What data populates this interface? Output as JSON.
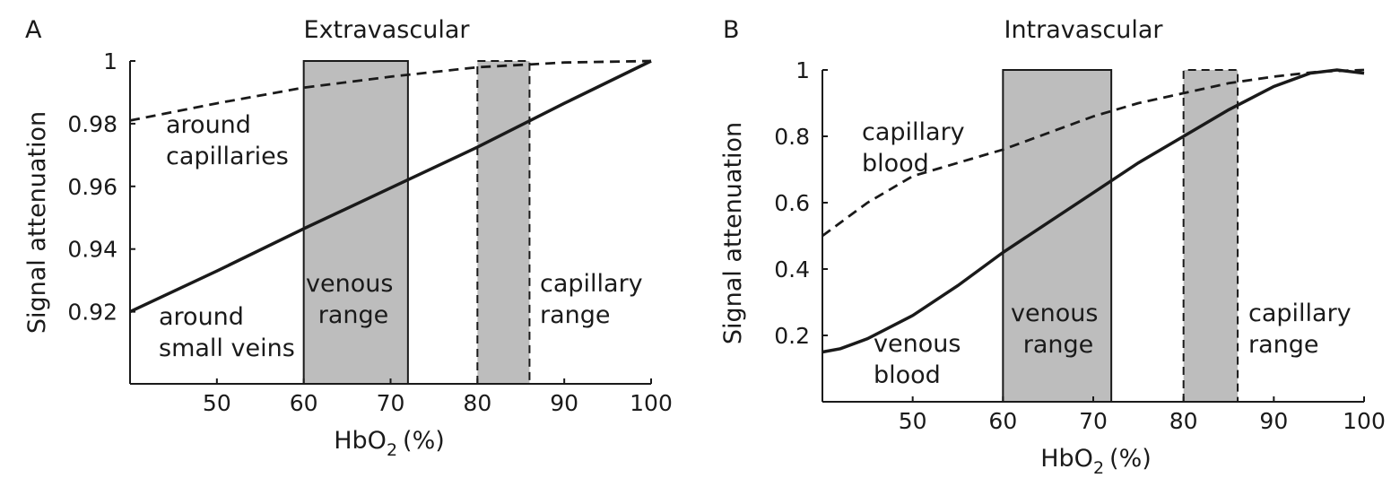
{
  "chart_data": [
    {
      "type": "line",
      "panel_letter": "A",
      "title": "Extravascular",
      "xlabel": "HbO",
      "xlabel_sub": "2",
      "xlabel_unit": "(%)",
      "ylabel": "Signal attenuation",
      "xlim": [
        40,
        100
      ],
      "ylim": [
        0.897,
        1.0
      ],
      "xticks": [
        "50",
        "60",
        "70",
        "80",
        "90",
        "100"
      ],
      "xtick_values": [
        50,
        60,
        70,
        80,
        90,
        100
      ],
      "yticks": [
        "0.92",
        "0.94",
        "0.96",
        "0.98",
        "1"
      ],
      "ytick_values": [
        0.92,
        0.94,
        0.96,
        0.98,
        1.0
      ],
      "bands": [
        {
          "name": "venous",
          "x": [
            60,
            72
          ],
          "edge": "solid",
          "lines": [
            "venous",
            "range"
          ]
        },
        {
          "name": "capillary",
          "x": [
            80,
            86
          ],
          "edge": "dashed",
          "lines": [
            "capillary",
            "range"
          ]
        }
      ],
      "series": [
        {
          "name": "around small veins",
          "lines": [
            "around",
            "small veins"
          ],
          "style": "solid",
          "x": [
            40,
            50,
            60,
            70,
            80,
            90,
            100
          ],
          "y": [
            0.92,
            0.933,
            0.9465,
            0.9595,
            0.9725,
            0.9865,
            1.0
          ]
        },
        {
          "name": "around capillaries",
          "lines": [
            "around",
            "capillaries"
          ],
          "style": "dashed",
          "x": [
            40,
            50,
            60,
            70,
            80,
            90,
            100
          ],
          "y": [
            0.981,
            0.9865,
            0.9915,
            0.995,
            0.998,
            0.9995,
            1.0
          ]
        }
      ]
    },
    {
      "type": "line",
      "panel_letter": "B",
      "title": "Intravascular",
      "xlabel": "HbO",
      "xlabel_sub": "2",
      "xlabel_unit": "(%)",
      "ylabel": "Signal attenuation",
      "xlim": [
        40,
        100
      ],
      "ylim": [
        0,
        1.0
      ],
      "xticks": [
        "50",
        "60",
        "70",
        "80",
        "90",
        "100"
      ],
      "xtick_values": [
        50,
        60,
        70,
        80,
        90,
        100
      ],
      "yticks": [
        "0.2",
        "0.4",
        "0.6",
        "0.8",
        "1"
      ],
      "ytick_values": [
        0.2,
        0.4,
        0.6,
        0.8,
        1.0
      ],
      "bands": [
        {
          "name": "venous",
          "x": [
            60,
            72
          ],
          "edge": "solid",
          "lines": [
            "venous",
            "range"
          ]
        },
        {
          "name": "capillary",
          "x": [
            80,
            86
          ],
          "edge": "dashed",
          "lines": [
            "capillary",
            "range"
          ]
        }
      ],
      "series": [
        {
          "name": "venous blood",
          "lines": [
            "venous",
            "blood"
          ],
          "style": "solid",
          "x": [
            40,
            42,
            45,
            50,
            55,
            60,
            65,
            70,
            75,
            80,
            85,
            90,
            94,
            97,
            100
          ],
          "y": [
            0.15,
            0.16,
            0.19,
            0.26,
            0.35,
            0.45,
            0.54,
            0.63,
            0.72,
            0.8,
            0.88,
            0.95,
            0.99,
            1.0,
            0.99
          ]
        },
        {
          "name": "capillary blood",
          "lines": [
            "capillary",
            "blood"
          ],
          "style": "dashed",
          "x": [
            40,
            45,
            50,
            55,
            60,
            65,
            70,
            75,
            80,
            85,
            90,
            95,
            100
          ],
          "y": [
            0.5,
            0.6,
            0.68,
            0.72,
            0.76,
            0.81,
            0.86,
            0.9,
            0.93,
            0.96,
            0.98,
            0.995,
            1.0
          ]
        }
      ]
    }
  ]
}
